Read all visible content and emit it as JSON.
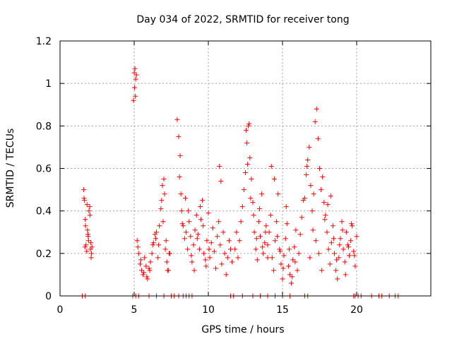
{
  "chart_data": {
    "type": "scatter",
    "title": "Day 034 of 2022, SRMTID for receiver tong",
    "xlabel": "GPS time / hours",
    "ylabel": "SRMTID / TECUs",
    "xlim": [
      0,
      25
    ],
    "ylim": [
      0,
      1.2
    ],
    "xticks": [
      0,
      5,
      10,
      15,
      20
    ],
    "xtick_labels": [
      "0",
      "5",
      "10",
      "15",
      "20"
    ],
    "yticks": [
      0,
      0.2,
      0.4,
      0.6,
      0.8,
      1.0,
      1.2
    ],
    "ytick_labels": [
      "0",
      "0.2",
      "0.4",
      "0.6",
      "0.8",
      "1",
      "1.2"
    ],
    "grid": true,
    "marker": "+",
    "color": "#ff0000",
    "series": [
      {
        "name": "SRMTID",
        "x": [
          1.6,
          1.65,
          1.7,
          1.75,
          1.8,
          1.85,
          1.9,
          1.95,
          2.0,
          2.05,
          2.1,
          2.15,
          1.62,
          1.72,
          1.82,
          1.92,
          2.02,
          2.12,
          1.68,
          1.88,
          2.08,
          4.95,
          5.0,
          5.05,
          5.1,
          5.15,
          5.02,
          5.08,
          5.2,
          5.3,
          5.4,
          5.5,
          5.6,
          5.7,
          5.8,
          5.9,
          6.0,
          6.1,
          6.2,
          6.3,
          6.4,
          6.5,
          6.6,
          6.7,
          6.8,
          6.9,
          7.0,
          7.1,
          7.2,
          7.3,
          7.4,
          5.25,
          5.45,
          5.65,
          5.85,
          6.05,
          6.25,
          6.45,
          6.65,
          6.85,
          7.05,
          7.25,
          6.95,
          7.15,
          7.35,
          7.9,
          8.0,
          8.1,
          8.05,
          8.15,
          8.2,
          8.3,
          8.4,
          8.5,
          8.6,
          8.7,
          8.8,
          8.9,
          9.0,
          9.1,
          9.2,
          9.3,
          9.4,
          9.5,
          9.6,
          9.7,
          9.8,
          9.9,
          10.0,
          8.25,
          8.45,
          8.65,
          8.85,
          9.05,
          9.25,
          9.45,
          9.65,
          9.85,
          10.05,
          10.1,
          10.2,
          10.3,
          10.4,
          10.5,
          10.6,
          10.7,
          10.8,
          10.9,
          11.0,
          11.1,
          11.2,
          11.3,
          11.4,
          11.5,
          11.6,
          10.75,
          10.85,
          11.8,
          11.9,
          12.0,
          12.1,
          12.2,
          12.3,
          12.4,
          12.5,
          12.6,
          12.7,
          12.8,
          12.9,
          13.0,
          13.1,
          13.2,
          13.3,
          13.4,
          13.5,
          13.6,
          13.7,
          13.8,
          13.9,
          14.0,
          12.55,
          12.65,
          12.75,
          12.85,
          13.05,
          13.25,
          13.45,
          13.65,
          13.85,
          14.0,
          14.1,
          14.2,
          14.3,
          14.4,
          14.5,
          14.6,
          14.7,
          14.8,
          14.9,
          15.0,
          15.1,
          15.2,
          15.3,
          15.4,
          15.5,
          15.6,
          15.7,
          15.8,
          15.9,
          16.0,
          16.1,
          16.2,
          16.3,
          16.4,
          14.25,
          14.45,
          14.65,
          14.85,
          15.05,
          15.25,
          15.45,
          15.65,
          15.85,
          16.5,
          16.6,
          16.7,
          16.8,
          16.9,
          17.0,
          17.1,
          17.2,
          17.3,
          17.4,
          17.5,
          17.6,
          17.7,
          17.8,
          17.9,
          18.0,
          18.1,
          18.2,
          18.3,
          18.4,
          18.5,
          18.6,
          18.7,
          18.8,
          18.9,
          19.0,
          19.1,
          19.2,
          19.3,
          19.4,
          19.5,
          19.6,
          19.7,
          19.8,
          19.9,
          20.0,
          16.65,
          16.85,
          17.05,
          17.25,
          17.45,
          17.65,
          17.85,
          18.05,
          18.25,
          18.45,
          18.65,
          18.85,
          19.05,
          19.25,
          19.45,
          19.65,
          19.85,
          1.5,
          1.7,
          4.9,
          5.1,
          5.3,
          6.0,
          6.5,
          7.0,
          7.5,
          7.7,
          8.0,
          8.3,
          8.5,
          8.7,
          8.9,
          11.5,
          11.7,
          12.3,
          13.0,
          13.5,
          14.0,
          14.5,
          15.0,
          15.5,
          16.5,
          16.7,
          19.8,
          19.9,
          20.1,
          20.3,
          21.0,
          21.5,
          21.7,
          22.2,
          22.6,
          22.8
        ],
        "y": [
          0.5,
          0.45,
          0.36,
          0.24,
          0.21,
          0.31,
          0.28,
          0.4,
          0.42,
          0.22,
          0.18,
          0.23,
          0.46,
          0.33,
          0.43,
          0.26,
          0.38,
          0.2,
          0.23,
          0.29,
          0.25,
          0.92,
          1.05,
          1.07,
          1.02,
          1.04,
          0.98,
          0.94,
          0.26,
          0.2,
          0.15,
          0.12,
          0.1,
          0.18,
          0.14,
          0.08,
          0.13,
          0.16,
          0.2,
          0.25,
          0.29,
          0.3,
          0.18,
          0.33,
          0.41,
          0.52,
          0.55,
          0.22,
          0.16,
          0.12,
          0.2,
          0.23,
          0.17,
          0.11,
          0.09,
          0.12,
          0.24,
          0.27,
          0.24,
          0.45,
          0.48,
          0.12,
          0.35,
          0.26,
          0.2,
          0.83,
          0.75,
          0.66,
          0.56,
          0.48,
          0.4,
          0.33,
          0.27,
          0.3,
          0.22,
          0.35,
          0.28,
          0.16,
          0.24,
          0.31,
          0.38,
          0.29,
          0.22,
          0.36,
          0.45,
          0.2,
          0.17,
          0.26,
          0.39,
          0.34,
          0.46,
          0.4,
          0.19,
          0.12,
          0.27,
          0.42,
          0.33,
          0.14,
          0.22,
          0.18,
          0.25,
          0.32,
          0.21,
          0.13,
          0.28,
          0.35,
          0.24,
          0.15,
          0.3,
          0.2,
          0.1,
          0.18,
          0.26,
          0.22,
          0.16,
          0.61,
          0.54,
          0.22,
          0.3,
          0.18,
          0.26,
          0.35,
          0.42,
          0.5,
          0.58,
          0.72,
          0.8,
          0.65,
          0.55,
          0.44,
          0.3,
          0.22,
          0.17,
          0.35,
          0.28,
          0.48,
          0.2,
          0.25,
          0.33,
          0.18,
          0.78,
          0.62,
          0.81,
          0.46,
          0.38,
          0.27,
          0.41,
          0.23,
          0.3,
          0.24,
          0.3,
          0.38,
          0.18,
          0.12,
          0.26,
          0.35,
          0.48,
          0.22,
          0.15,
          0.08,
          0.19,
          0.27,
          0.34,
          0.14,
          0.1,
          0.06,
          0.17,
          0.23,
          0.31,
          0.12,
          0.2,
          0.29,
          0.37,
          0.45,
          0.61,
          0.55,
          0.28,
          0.21,
          0.13,
          0.42,
          0.22,
          0.09,
          0.16,
          0.46,
          0.57,
          0.64,
          0.7,
          0.52,
          0.4,
          0.48,
          0.82,
          0.88,
          0.74,
          0.6,
          0.5,
          0.56,
          0.44,
          0.38,
          0.3,
          0.22,
          0.15,
          0.25,
          0.33,
          0.2,
          0.12,
          0.08,
          0.18,
          0.27,
          0.35,
          0.22,
          0.16,
          0.3,
          0.24,
          0.19,
          0.26,
          0.33,
          0.21,
          0.14,
          0.28,
          0.61,
          0.18,
          0.31,
          0.26,
          0.2,
          0.12,
          0.36,
          0.43,
          0.47,
          0.27,
          0.17,
          0.24,
          0.31,
          0.1,
          0.23,
          0.34,
          0.19,
          0,
          0,
          0,
          0,
          0,
          0,
          0,
          0,
          0,
          0,
          0,
          0,
          0,
          0,
          0,
          0,
          0,
          0,
          0,
          0,
          0,
          0,
          0,
          0,
          0,
          0,
          0,
          0,
          0,
          0,
          0,
          0,
          0,
          0,
          0,
          0
        ]
      }
    ]
  }
}
